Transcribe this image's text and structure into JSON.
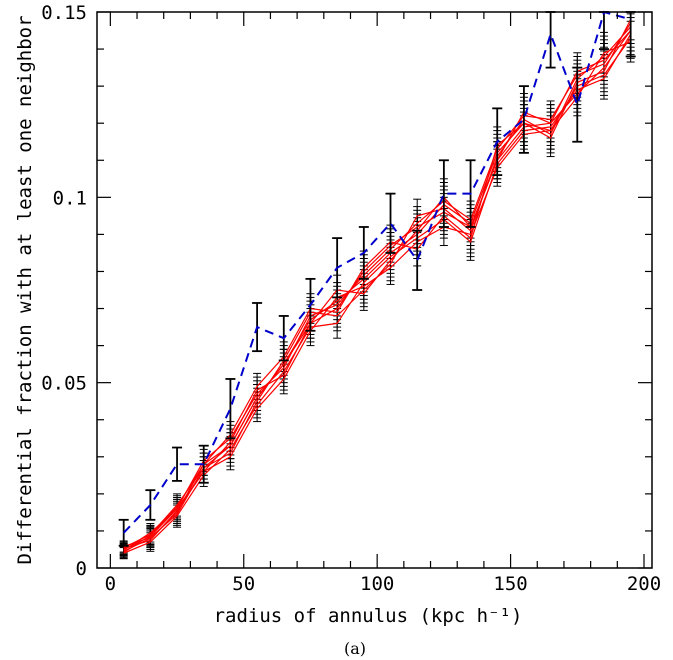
{
  "chart_data": {
    "type": "line",
    "xlabel": "radius of annulus (kpc h⁻¹)",
    "ylabel": "Differential fraction with at least one neighbor",
    "caption": "(a)",
    "xlim": [
      -5,
      203
    ],
    "ylim": [
      0,
      0.15
    ],
    "x_ticks": [
      0,
      50,
      100,
      150,
      200
    ],
    "y_ticks": [
      0,
      0.05,
      0.1,
      0.15
    ],
    "y_tick_labels": [
      "0",
      "0.05",
      "0.1",
      "0.15"
    ],
    "x": [
      5,
      15,
      25,
      35,
      45,
      55,
      65,
      75,
      85,
      95,
      105,
      115,
      125,
      135,
      145,
      155,
      165,
      175,
      185,
      195
    ],
    "colors": {
      "mock": "#ff0000",
      "observed": "#0000cc",
      "errorbar": "#000000"
    },
    "observed": {
      "style": "dashed",
      "values": [
        0.0095,
        0.017,
        0.028,
        0.028,
        0.043,
        0.065,
        0.062,
        0.071,
        0.081,
        0.085,
        0.093,
        0.083,
        0.101,
        0.101,
        0.115,
        0.121,
        0.144,
        0.125,
        0.15,
        0.148
      ],
      "errors": [
        0.0035,
        0.004,
        0.0045,
        0.005,
        0.008,
        0.0065,
        0.006,
        0.007,
        0.008,
        0.007,
        0.008,
        0.008,
        0.009,
        0.009,
        0.009,
        0.009,
        0.009,
        0.01,
        0.01,
        0.01
      ]
    },
    "mock_error": [
      0.0015,
      0.0025,
      0.003,
      0.003,
      0.0035,
      0.0035,
      0.004,
      0.004,
      0.004,
      0.0045,
      0.0045,
      0.0045,
      0.005,
      0.005,
      0.005,
      0.005,
      0.005,
      0.005,
      0.0055,
      0.0055
    ],
    "series": [
      {
        "values": [
          0.0045,
          0.008,
          0.015,
          0.028,
          0.033,
          0.046,
          0.055,
          0.067,
          0.072,
          0.078,
          0.085,
          0.09,
          0.098,
          0.093,
          0.112,
          0.12,
          0.118,
          0.13,
          0.133,
          0.143
        ]
      },
      {
        "values": [
          0.005,
          0.0085,
          0.016,
          0.026,
          0.034,
          0.048,
          0.052,
          0.066,
          0.07,
          0.08,
          0.087,
          0.092,
          0.096,
          0.092,
          0.11,
          0.119,
          0.12,
          0.128,
          0.135,
          0.145
        ]
      },
      {
        "values": [
          0.0055,
          0.009,
          0.017,
          0.027,
          0.031,
          0.045,
          0.056,
          0.069,
          0.068,
          0.075,
          0.082,
          0.095,
          0.097,
          0.091,
          0.111,
          0.121,
          0.117,
          0.132,
          0.138,
          0.146
        ]
      },
      {
        "values": [
          0.004,
          0.007,
          0.014,
          0.025,
          0.032,
          0.044,
          0.053,
          0.065,
          0.066,
          0.077,
          0.084,
          0.089,
          0.094,
          0.088,
          0.109,
          0.118,
          0.119,
          0.129,
          0.132,
          0.144
        ]
      },
      {
        "values": [
          0.0048,
          0.0095,
          0.016,
          0.029,
          0.035,
          0.047,
          0.054,
          0.068,
          0.071,
          0.079,
          0.086,
          0.093,
          0.099,
          0.094,
          0.113,
          0.122,
          0.121,
          0.133,
          0.136,
          0.147
        ]
      },
      {
        "values": [
          0.0052,
          0.0075,
          0.0155,
          0.026,
          0.03,
          0.043,
          0.051,
          0.064,
          0.073,
          0.076,
          0.081,
          0.088,
          0.092,
          0.09,
          0.108,
          0.117,
          0.118,
          0.127,
          0.139,
          0.142
        ]
      },
      {
        "values": [
          0.0042,
          0.0088,
          0.0165,
          0.028,
          0.036,
          0.049,
          0.057,
          0.07,
          0.069,
          0.081,
          0.088,
          0.086,
          0.095,
          0.089,
          0.114,
          0.12,
          0.116,
          0.131,
          0.134,
          0.148
        ]
      },
      {
        "values": [
          0.0058,
          0.0082,
          0.0145,
          0.027,
          0.033,
          0.046,
          0.055,
          0.066,
          0.075,
          0.074,
          0.083,
          0.091,
          0.1,
          0.092,
          0.11,
          0.123,
          0.12,
          0.134,
          0.137,
          0.145
        ]
      }
    ]
  }
}
